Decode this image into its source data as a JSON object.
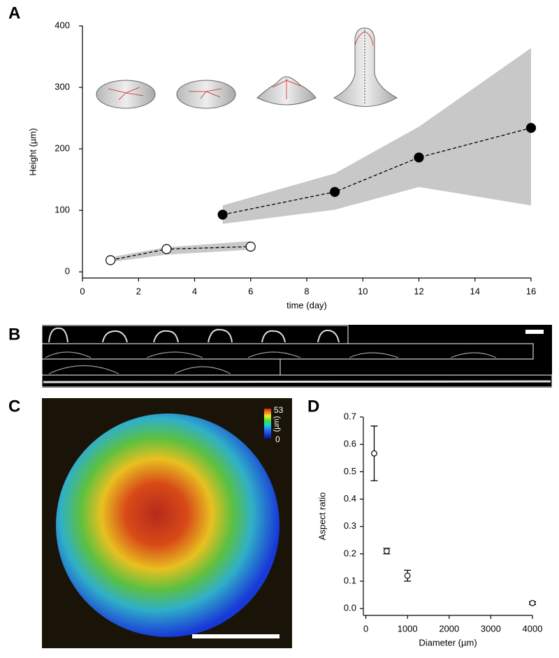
{
  "panels": {
    "B": {
      "label": "B"
    },
    "C": {
      "label": "C",
      "colorbar": [
        "53",
        "(µm)",
        "0"
      ]
    }
  },
  "chart_data": [
    {
      "type": "line",
      "label": "A",
      "xlabel": "time (day)",
      "ylabel": "Height (µm)",
      "xlim": [
        0,
        16
      ],
      "xticks": [
        0,
        2,
        4,
        6,
        8,
        10,
        12,
        14,
        16
      ],
      "ylim": [
        -10,
        400
      ],
      "yticks": [
        0,
        100,
        200,
        300,
        400
      ],
      "band_color": "#c8c8c8",
      "series": [
        {
          "marker": "open",
          "color": "#000000",
          "x": [
            1,
            3,
            6
          ],
          "values": [
            19,
            37,
            41
          ],
          "lower": [
            16,
            28,
            36
          ],
          "upper": [
            24,
            40,
            50
          ]
        },
        {
          "marker": "filled",
          "color": "#000000",
          "x": [
            5,
            9,
            12,
            16
          ],
          "values": [
            93,
            130,
            186,
            234
          ],
          "lower": [
            78,
            101,
            138,
            108
          ],
          "upper": [
            108,
            160,
            236,
            364
          ]
        }
      ]
    },
    {
      "type": "scatter",
      "label": "D",
      "xlabel": "Diameter (µm)",
      "ylabel": "Aspect ratio",
      "xlim": [
        -60,
        4000
      ],
      "xticks": [
        0,
        1000,
        2000,
        3000,
        4000
      ],
      "ylim": [
        -0.025,
        0.7
      ],
      "yticks": [
        {
          "value": 0,
          "label": "0.0"
        },
        0.1,
        0.2,
        0.3,
        0.4,
        0.5,
        0.6,
        0.7
      ],
      "x": [
        200,
        500,
        1000,
        4000
      ],
      "values": [
        0.567,
        0.21,
        0.12,
        0.02
      ],
      "errors": [
        0.1,
        0.01,
        0.02,
        0.005
      ]
    }
  ]
}
